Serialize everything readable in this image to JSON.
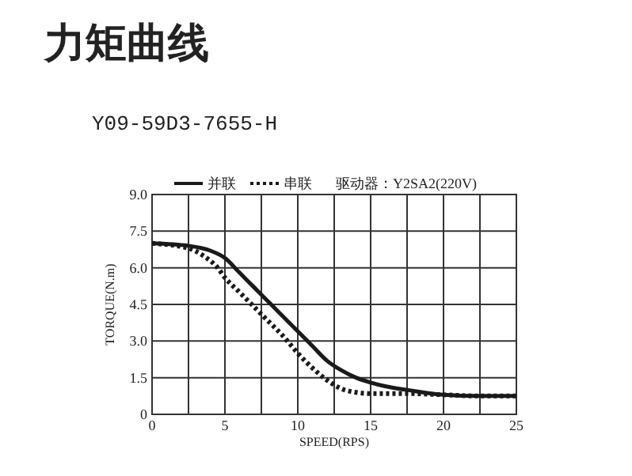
{
  "chart_data": {
    "type": "line",
    "title": "力矩曲线",
    "subtitle": "Y09-59D3-7655-H",
    "xlabel": "SPEED(RPS)",
    "ylabel": "TORQUE(N.m)",
    "annotations": [
      "驱动器：Y2SA2(220V)"
    ],
    "xlim": [
      0,
      25
    ],
    "xticks": [
      0,
      {
        "value": 2.5,
        "label": null
      },
      5,
      {
        "value": 7.5,
        "label": null
      },
      10,
      {
        "value": 12.5,
        "label": null
      },
      15,
      {
        "value": 17.5,
        "label": null
      },
      20,
      {
        "value": 22.5,
        "label": null
      },
      25
    ],
    "ylim": [
      0,
      9
    ],
    "yticks": [
      0,
      1.5,
      {
        "value": 3,
        "label": "3.0"
      },
      4.5,
      {
        "value": 6,
        "label": "6.0"
      },
      7.5,
      {
        "value": 9,
        "label": "9.0"
      }
    ],
    "grid": true,
    "legend": "top",
    "marker": "none",
    "series": [
      {
        "name": "并联",
        "color": "#1a1a1a",
        "line_style": "solid",
        "x": [
          0,
          2.5,
          4,
          5,
          6,
          7,
          8,
          9,
          10,
          11,
          12,
          13,
          14,
          15,
          16,
          17.5,
          20,
          22.5,
          25
        ],
        "values": [
          7.0,
          6.9,
          6.7,
          6.4,
          5.8,
          5.2,
          4.6,
          4.0,
          3.4,
          2.8,
          2.2,
          1.8,
          1.5,
          1.3,
          1.15,
          1.0,
          0.8,
          0.75,
          0.75
        ]
      },
      {
        "name": "串联",
        "color": "#1a1a1a",
        "line_style": "dotted",
        "x": [
          0,
          2.5,
          3.5,
          4.5,
          5,
          6,
          7,
          8,
          9,
          10,
          11,
          12,
          13,
          14,
          15,
          17.5,
          20,
          22.5,
          25
        ],
        "values": [
          7.0,
          6.8,
          6.5,
          6.0,
          5.6,
          5.0,
          4.4,
          3.8,
          3.2,
          2.5,
          1.9,
          1.4,
          1.05,
          0.9,
          0.85,
          0.85,
          0.8,
          0.75,
          0.75
        ]
      }
    ]
  }
}
